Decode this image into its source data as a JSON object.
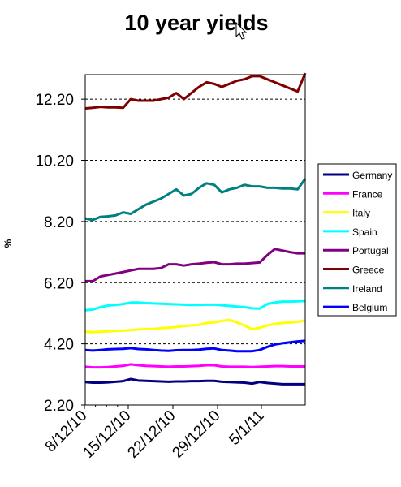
{
  "chart_data": {
    "type": "line",
    "title": "10 year yields",
    "xlabel": "",
    "ylabel": "%",
    "ylim": [
      2.2,
      13.0
    ],
    "yticks": [
      2.2,
      4.2,
      6.2,
      8.2,
      10.2,
      12.2
    ],
    "ytick_labels": [
      "2.20",
      "4.20",
      "6.20",
      "8.20",
      "10.20",
      "12.20"
    ],
    "x_start": "8/12/10",
    "x_end": "14/1/11",
    "x_tick_labels": [
      "8/12/10",
      "15/12/10",
      "22/12/10",
      "29/12/10",
      "5/1/11"
    ],
    "grid": "horizontal dashed",
    "legend_position": "right",
    "series": [
      {
        "name": "Germany",
        "color": "#000080",
        "values": [
          2.95,
          2.93,
          2.93,
          2.94,
          2.96,
          2.98,
          3.05,
          3.0,
          2.99,
          2.98,
          2.97,
          2.96,
          2.97,
          2.97,
          2.98,
          2.98,
          2.99,
          2.99,
          2.96,
          2.95,
          2.94,
          2.93,
          2.9,
          2.95,
          2.92,
          2.9,
          2.88,
          2.88,
          2.88,
          2.88
        ]
      },
      {
        "name": "France",
        "color": "#FF00FF",
        "values": [
          3.45,
          3.43,
          3.43,
          3.44,
          3.46,
          3.48,
          3.53,
          3.5,
          3.48,
          3.47,
          3.46,
          3.45,
          3.46,
          3.46,
          3.47,
          3.48,
          3.5,
          3.5,
          3.46,
          3.45,
          3.45,
          3.45,
          3.44,
          3.45,
          3.46,
          3.47,
          3.47,
          3.46,
          3.46,
          3.46
        ]
      },
      {
        "name": "Italy",
        "color": "#FFFF00",
        "values": [
          4.6,
          4.58,
          4.6,
          4.61,
          4.62,
          4.63,
          4.65,
          4.67,
          4.68,
          4.69,
          4.71,
          4.73,
          4.75,
          4.78,
          4.8,
          4.82,
          4.88,
          4.9,
          4.95,
          4.98,
          4.9,
          4.8,
          4.68,
          4.72,
          4.8,
          4.85,
          4.88,
          4.9,
          4.92,
          4.97
        ]
      },
      {
        "name": "Spain",
        "color": "#00FFFF",
        "values": [
          5.3,
          5.32,
          5.4,
          5.45,
          5.47,
          5.5,
          5.55,
          5.55,
          5.53,
          5.52,
          5.51,
          5.5,
          5.49,
          5.48,
          5.47,
          5.47,
          5.48,
          5.48,
          5.46,
          5.44,
          5.42,
          5.4,
          5.36,
          5.35,
          5.5,
          5.55,
          5.58,
          5.58,
          5.59,
          5.6
        ]
      },
      {
        "name": "Portugal",
        "color": "#800080",
        "values": [
          6.25,
          6.25,
          6.4,
          6.45,
          6.5,
          6.55,
          6.6,
          6.65,
          6.65,
          6.65,
          6.68,
          6.8,
          6.8,
          6.76,
          6.8,
          6.82,
          6.85,
          6.87,
          6.8,
          6.8,
          6.82,
          6.82,
          6.84,
          6.86,
          7.1,
          7.3,
          7.25,
          7.2,
          7.16,
          7.16
        ]
      },
      {
        "name": "Greece",
        "color": "#800000",
        "values": [
          11.9,
          11.92,
          11.95,
          11.93,
          11.93,
          11.92,
          12.2,
          12.15,
          12.15,
          12.15,
          12.2,
          12.25,
          12.4,
          12.2,
          12.4,
          12.6,
          12.75,
          12.7,
          12.6,
          12.7,
          12.8,
          12.85,
          12.95,
          12.95,
          12.85,
          12.75,
          12.65,
          12.55,
          12.45,
          13.05
        ]
      },
      {
        "name": "Ireland",
        "color": "#008080",
        "values": [
          8.3,
          8.25,
          8.35,
          8.37,
          8.4,
          8.5,
          8.45,
          8.6,
          8.75,
          8.85,
          8.95,
          9.1,
          9.25,
          9.05,
          9.1,
          9.3,
          9.45,
          9.4,
          9.15,
          9.25,
          9.3,
          9.4,
          9.35,
          9.35,
          9.3,
          9.3,
          9.28,
          9.28,
          9.25,
          9.6
        ]
      },
      {
        "name": "Belgium",
        "color": "#0000FF",
        "values": [
          4.0,
          3.98,
          4.0,
          4.02,
          4.03,
          4.04,
          4.06,
          4.03,
          4.02,
          4.0,
          3.98,
          3.97,
          3.99,
          4.0,
          4.0,
          4.01,
          4.04,
          4.05,
          4.0,
          3.98,
          3.96,
          3.96,
          3.96,
          4.0,
          4.1,
          4.18,
          4.22,
          4.25,
          4.28,
          4.3
        ]
      }
    ]
  },
  "cursor": {
    "icon": "mouse-pointer-icon"
  }
}
